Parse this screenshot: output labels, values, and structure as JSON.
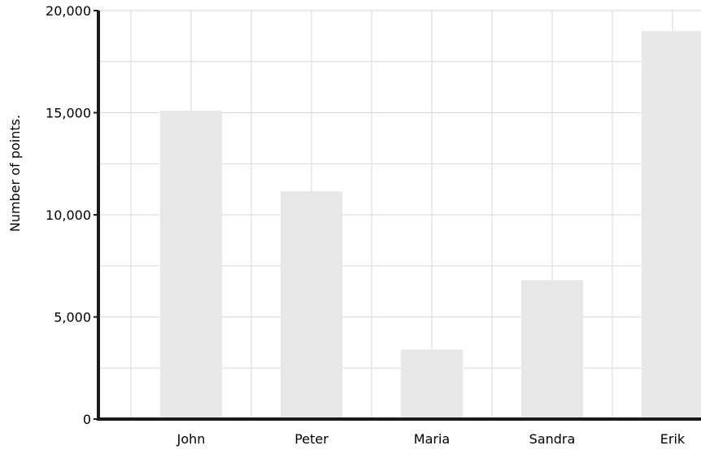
{
  "chart_data": {
    "type": "bar",
    "title": "",
    "xlabel": "",
    "ylabel": "Number of points.",
    "categories": [
      "John",
      "Peter",
      "Maria",
      "Sandra",
      "Erik"
    ],
    "values": [
      15100,
      11150,
      3400,
      6800,
      19000
    ],
    "ylim": [
      0,
      20000
    ],
    "y_ticks": [
      {
        "value": 0,
        "label": "0"
      },
      {
        "value": 5000,
        "label": "5,000"
      },
      {
        "value": 10000,
        "label": "10,000"
      },
      {
        "value": 15000,
        "label": "15,000"
      },
      {
        "value": 20000,
        "label": "20,000"
      }
    ],
    "grid": true,
    "legend": "none",
    "colors": {
      "bar": "#e6e7e8",
      "grid": "#d9d9d9",
      "axis": "#1a1a1a"
    }
  }
}
